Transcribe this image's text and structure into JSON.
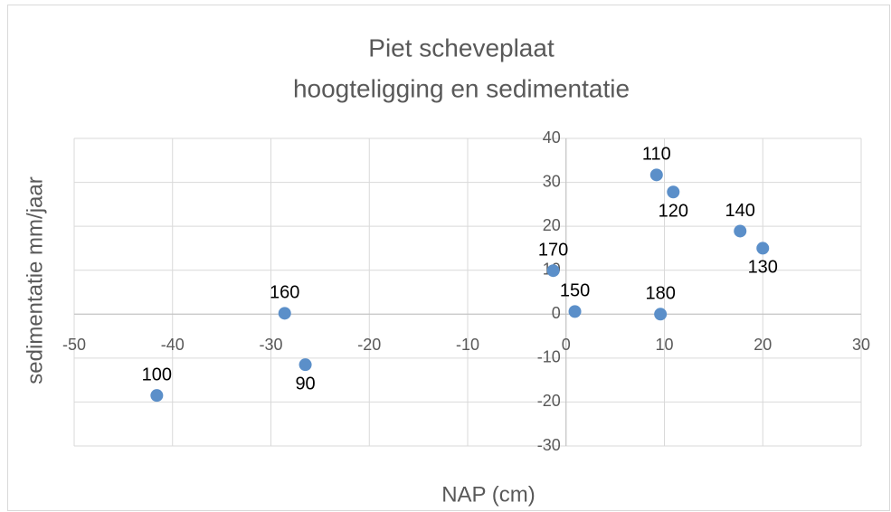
{
  "chart_data": {
    "type": "scatter",
    "title": [
      "Piet scheveplaat",
      "hoogteligging en sedimentatie"
    ],
    "x_label": "NAP (cm)",
    "y_label": "sedimentatie mm/jaar",
    "series": [
      {
        "color": "#5b8fc9",
        "x": [
          -41.6,
          -28.6,
          -26.5,
          -1.3,
          0.9,
          9.6,
          9.2,
          10.9,
          17.7,
          20.0
        ],
        "values": [
          -18.5,
          0.2,
          -11.5,
          9.9,
          0.6,
          0,
          31.7,
          27.8,
          18.9,
          15.0
        ],
        "point_labels": [
          "100",
          "160",
          "90",
          "170",
          "150",
          "180",
          "110",
          "120",
          "140",
          "130"
        ]
      }
    ],
    "xlim": [
      -50,
      30
    ],
    "xticks": [
      -50,
      -40,
      -30,
      -20,
      -10,
      0,
      10,
      20,
      30
    ],
    "ylim": [
      -30,
      40
    ],
    "yticks": [
      -30,
      -20,
      -10,
      0,
      10,
      20,
      30,
      40
    ],
    "grid": true
  }
}
